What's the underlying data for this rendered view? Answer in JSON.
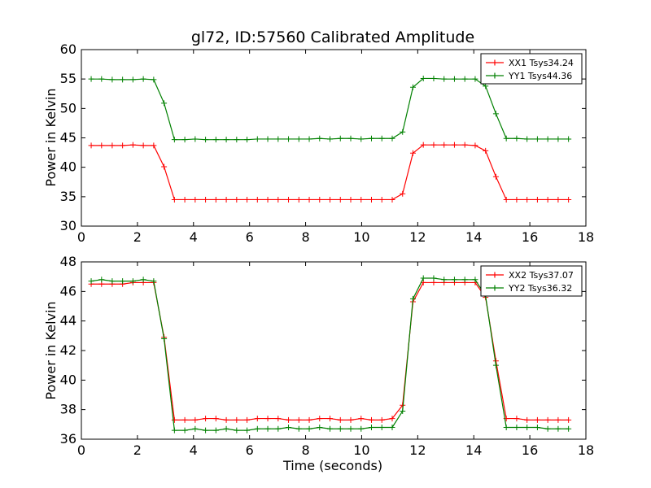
{
  "chart_data": [
    {
      "type": "line",
      "title": "gl72, ID:57560 Calibrated Amplitude",
      "xlabel": "",
      "ylabel": "Power in Kelvin",
      "xlim": [
        0,
        18
      ],
      "ylim": [
        30,
        60
      ],
      "xticks": [
        "0",
        "2",
        "4",
        "6",
        "8",
        "10",
        "12",
        "14",
        "16",
        "18"
      ],
      "yticks": [
        "30",
        "35",
        "40",
        "45",
        "50",
        "55",
        "60"
      ],
      "legend_position": "top-right",
      "x": [
        0.35,
        0.72,
        1.1,
        1.47,
        1.84,
        2.21,
        2.58,
        2.95,
        3.32,
        3.69,
        4.06,
        4.43,
        4.8,
        5.17,
        5.54,
        5.91,
        6.28,
        6.65,
        7.02,
        7.39,
        7.76,
        8.13,
        8.5,
        8.87,
        9.24,
        9.61,
        9.98,
        10.35,
        10.72,
        11.09,
        11.46,
        11.83,
        12.2,
        12.57,
        12.94,
        13.31,
        13.68,
        14.05,
        14.42,
        14.79,
        15.16,
        15.53,
        15.9,
        16.27,
        16.64,
        17.01,
        17.38
      ],
      "series": [
        {
          "name": "XX1 Tsys34.24",
          "color": "#ff0000",
          "values": [
            43.7,
            43.7,
            43.7,
            43.7,
            43.8,
            43.7,
            43.7,
            40.1,
            34.5,
            34.5,
            34.5,
            34.5,
            34.5,
            34.5,
            34.5,
            34.5,
            34.5,
            34.5,
            34.5,
            34.5,
            34.5,
            34.5,
            34.5,
            34.5,
            34.5,
            34.5,
            34.5,
            34.5,
            34.5,
            34.5,
            35.5,
            42.4,
            43.8,
            43.8,
            43.8,
            43.8,
            43.8,
            43.7,
            42.8,
            38.4,
            34.5,
            34.5,
            34.5,
            34.5,
            34.5,
            34.5,
            34.5
          ]
        },
        {
          "name": "YY1 Tsys44.36",
          "color": "#008000",
          "values": [
            55.0,
            55.0,
            54.9,
            54.9,
            54.9,
            55.0,
            54.9,
            50.9,
            44.7,
            44.7,
            44.8,
            44.7,
            44.7,
            44.7,
            44.7,
            44.7,
            44.8,
            44.8,
            44.8,
            44.8,
            44.8,
            44.8,
            44.9,
            44.8,
            44.9,
            44.9,
            44.8,
            44.9,
            44.9,
            44.9,
            46.0,
            53.6,
            55.1,
            55.1,
            55.0,
            55.0,
            55.0,
            55.0,
            53.8,
            49.1,
            44.9,
            44.9,
            44.8,
            44.8,
            44.8,
            44.8,
            44.8
          ]
        }
      ]
    },
    {
      "type": "line",
      "title": "",
      "xlabel": "Time (seconds)",
      "ylabel": "Power in Kelvin",
      "xlim": [
        0,
        18
      ],
      "ylim": [
        36,
        48
      ],
      "xticks": [
        "0",
        "2",
        "4",
        "6",
        "8",
        "10",
        "12",
        "14",
        "16",
        "18"
      ],
      "yticks": [
        "36",
        "38",
        "40",
        "42",
        "44",
        "46",
        "48"
      ],
      "legend_position": "top-right",
      "x": [
        0.35,
        0.72,
        1.1,
        1.47,
        1.84,
        2.21,
        2.58,
        2.95,
        3.32,
        3.69,
        4.06,
        4.43,
        4.8,
        5.17,
        5.54,
        5.91,
        6.28,
        6.65,
        7.02,
        7.39,
        7.76,
        8.13,
        8.5,
        8.87,
        9.24,
        9.61,
        9.98,
        10.35,
        10.72,
        11.09,
        11.46,
        11.83,
        12.2,
        12.57,
        12.94,
        13.31,
        13.68,
        14.05,
        14.42,
        14.79,
        15.16,
        15.53,
        15.9,
        16.27,
        16.64,
        17.01,
        17.38
      ],
      "series": [
        {
          "name": "XX2 Tsys37.07",
          "color": "#ff0000",
          "values": [
            46.5,
            46.5,
            46.5,
            46.5,
            46.6,
            46.6,
            46.6,
            42.9,
            37.3,
            37.3,
            37.3,
            37.4,
            37.4,
            37.3,
            37.3,
            37.3,
            37.4,
            37.4,
            37.4,
            37.3,
            37.3,
            37.3,
            37.4,
            37.4,
            37.3,
            37.3,
            37.4,
            37.3,
            37.3,
            37.4,
            38.3,
            45.3,
            46.6,
            46.6,
            46.6,
            46.6,
            46.6,
            46.6,
            45.6,
            41.3,
            37.4,
            37.4,
            37.3,
            37.3,
            37.3,
            37.3,
            37.3
          ]
        },
        {
          "name": "YY2 Tsys36.32",
          "color": "#008000",
          "values": [
            46.7,
            46.8,
            46.7,
            46.7,
            46.7,
            46.8,
            46.7,
            42.8,
            36.6,
            36.6,
            36.7,
            36.6,
            36.6,
            36.7,
            36.6,
            36.6,
            36.7,
            36.7,
            36.7,
            36.8,
            36.7,
            36.7,
            36.8,
            36.7,
            36.7,
            36.7,
            36.7,
            36.8,
            36.8,
            36.8,
            37.9,
            45.5,
            46.9,
            46.9,
            46.8,
            46.8,
            46.8,
            46.8,
            45.7,
            41.0,
            36.8,
            36.8,
            36.8,
            36.8,
            36.7,
            36.7,
            36.7
          ]
        }
      ]
    }
  ]
}
